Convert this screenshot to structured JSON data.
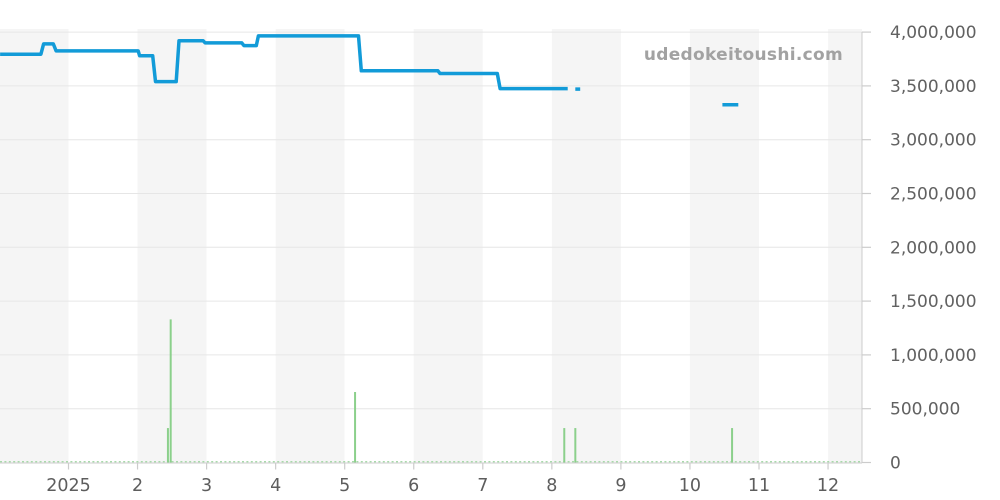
{
  "watermark": "udedokeitoushi.com",
  "chart_data": {
    "type": "line",
    "subtype": "price-line-with-volume-bars",
    "title": "",
    "xlabel": "",
    "ylabel": "",
    "x_axis": {
      "unit": "month (2025, starts Dec 2024)",
      "range_months": [
        0.01,
        12.49
      ],
      "ticks": [
        {
          "label": "2025",
          "month": 1
        },
        {
          "label": "2",
          "month": 2
        },
        {
          "label": "3",
          "month": 3
        },
        {
          "label": "4",
          "month": 4
        },
        {
          "label": "5",
          "month": 5
        },
        {
          "label": "6",
          "month": 6
        },
        {
          "label": "7",
          "month": 7
        },
        {
          "label": "8",
          "month": 8
        },
        {
          "label": "9",
          "month": 9
        },
        {
          "label": "10",
          "month": 10
        },
        {
          "label": "11",
          "month": 11
        },
        {
          "label": "12",
          "month": 12
        }
      ],
      "alternating_month_bands": true
    },
    "y_axis": {
      "side": "right",
      "range": [
        0,
        4000000
      ],
      "tick_step": 500000,
      "ticks": [
        {
          "value": 0,
          "label": "0"
        },
        {
          "value": 500000,
          "label": "500,000"
        },
        {
          "value": 1000000,
          "label": "1,000,000"
        },
        {
          "value": 1500000,
          "label": "1,500,000"
        },
        {
          "value": 2000000,
          "label": "2,000,000"
        },
        {
          "value": 2500000,
          "label": "2,500,000"
        },
        {
          "value": 3000000,
          "label": "3,000,000"
        },
        {
          "value": 3500000,
          "label": "3,500,000"
        },
        {
          "value": 4000000,
          "label": "4,000,000"
        }
      ],
      "grid": true
    },
    "price_line": {
      "name": "price",
      "segments": [
        [
          [
            0.01,
            3795000
          ],
          [
            0.6,
            3795000
          ],
          [
            0.64,
            3890000
          ],
          [
            0.78,
            3890000
          ],
          [
            0.82,
            3825000
          ],
          [
            2.01,
            3825000
          ],
          [
            2.03,
            3780000
          ],
          [
            2.22,
            3780000
          ],
          [
            2.26,
            3540000
          ],
          [
            2.56,
            3540000
          ],
          [
            2.6,
            3920000
          ],
          [
            2.95,
            3920000
          ],
          [
            2.98,
            3900000
          ],
          [
            3.51,
            3900000
          ],
          [
            3.54,
            3875000
          ],
          [
            3.72,
            3875000
          ],
          [
            3.75,
            3965000
          ],
          [
            5.2,
            3965000
          ],
          [
            5.24,
            3640000
          ],
          [
            6.35,
            3640000
          ],
          [
            6.38,
            3615000
          ],
          [
            7.21,
            3615000
          ],
          [
            7.25,
            3475000
          ],
          [
            8.23,
            3475000
          ]
        ],
        [
          [
            8.34,
            3470000
          ],
          [
            8.41,
            3470000
          ]
        ],
        [
          [
            10.47,
            3325000
          ],
          [
            10.7,
            3325000
          ]
        ]
      ]
    },
    "volume_bars": {
      "name": "volume",
      "bars": [
        {
          "month": 2.44,
          "value": 320000
        },
        {
          "month": 2.48,
          "value": 1330000
        },
        {
          "month": 5.15,
          "value": 655000
        },
        {
          "month": 8.18,
          "value": 320000
        },
        {
          "month": 8.34,
          "value": 320000
        },
        {
          "month": 10.61,
          "value": 320000
        }
      ],
      "near_zero_dotted_baseline": true
    },
    "legend": {
      "shown": false
    },
    "colors": {
      "price_line": "#129bd8",
      "volume_bar": "#8bd08b",
      "volume_baseline": "#a8daaa",
      "band_shade": "#f5f5f5",
      "band_light": "#ffffff",
      "gridline": "#e6e6e6",
      "axis_line": "#cccccc",
      "tick_text": "#5d5d5d",
      "watermark_text": "#a2a2a2"
    }
  }
}
